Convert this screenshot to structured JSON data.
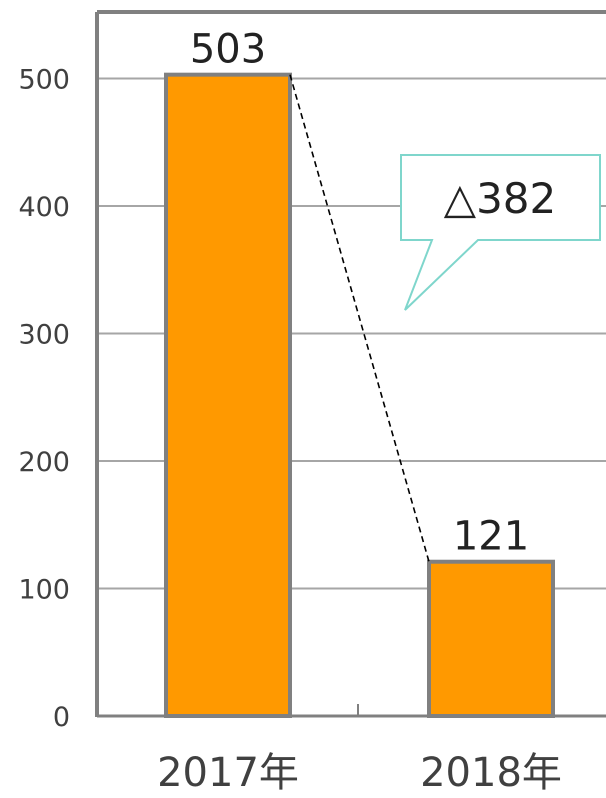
{
  "chart_data": {
    "type": "bar",
    "categories": [
      "2017年",
      "2018年"
    ],
    "values": [
      503,
      121
    ],
    "data_labels": [
      "503",
      "121"
    ],
    "ylim": [
      0,
      560
    ],
    "yticks": [
      0,
      100,
      200,
      300,
      400,
      500
    ],
    "ytick_labels": [
      "0",
      "100",
      "200",
      "300",
      "400",
      "500"
    ],
    "grid": true,
    "bar_color": "#FF9900",
    "bar_edge_color": "#808080",
    "annotation": {
      "text": "△382",
      "connector": "dashed line from top of 2017年 bar to top of 2018年 bar"
    }
  }
}
